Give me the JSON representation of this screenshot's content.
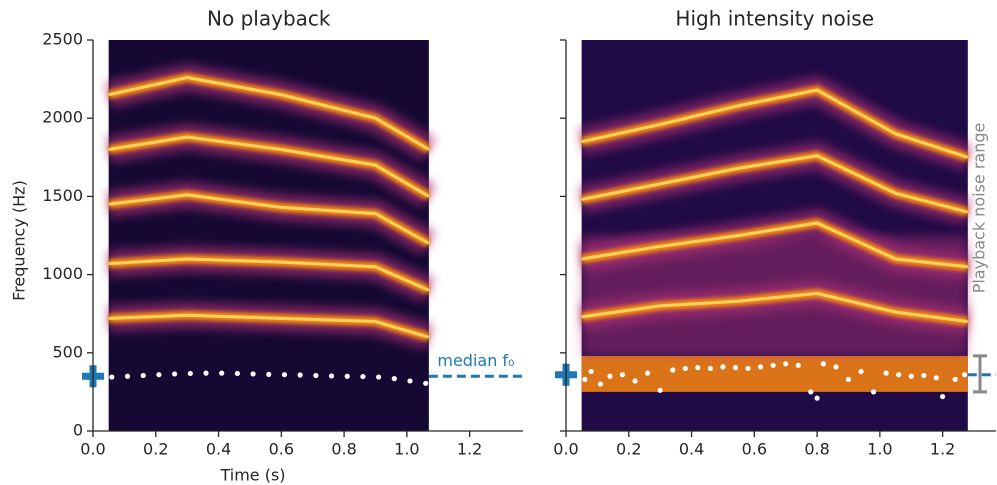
{
  "chart_data": [
    {
      "type": "spectrogram",
      "title": "No playback",
      "x_label": "Time (s)",
      "y_label": "Frequency (Hz)",
      "xlim": [
        0,
        1.37
      ],
      "ylim": [
        0,
        2500
      ],
      "xticks": [
        {
          "value": 0,
          "label": "0.0"
        },
        0.2,
        0.4,
        0.6,
        0.8,
        {
          "value": 1,
          "label": "1.0"
        },
        1.2
      ],
      "yticks": [
        0,
        500,
        1000,
        1500,
        2000,
        2500
      ],
      "ytick_labels": true,
      "extent": [
        0.05,
        1.07
      ],
      "harmonics": [
        {
          "x": [
            0.05,
            0.3,
            0.6,
            0.9,
            1.07
          ],
          "values": [
            720,
            740,
            720,
            700,
            600
          ]
        },
        {
          "x": [
            0.05,
            0.3,
            0.6,
            0.9,
            1.07
          ],
          "values": [
            1070,
            1100,
            1080,
            1050,
            900
          ]
        },
        {
          "x": [
            0.05,
            0.3,
            0.6,
            0.9,
            1.07
          ],
          "values": [
            1450,
            1510,
            1430,
            1390,
            1200
          ]
        },
        {
          "x": [
            0.05,
            0.3,
            0.6,
            0.9,
            1.07
          ],
          "values": [
            1800,
            1880,
            1800,
            1700,
            1500
          ]
        },
        {
          "x": [
            0.05,
            0.3,
            0.6,
            0.9,
            1.07
          ],
          "values": [
            2150,
            2260,
            2150,
            2000,
            1800
          ]
        }
      ],
      "f0": {
        "color": "#ffffff",
        "x": [
          0.06,
          0.11,
          0.16,
          0.21,
          0.26,
          0.31,
          0.36,
          0.41,
          0.46,
          0.51,
          0.56,
          0.61,
          0.66,
          0.71,
          0.76,
          0.81,
          0.86,
          0.91,
          0.96,
          1.01,
          1.06
        ],
        "values": [
          345,
          350,
          355,
          360,
          365,
          368,
          370,
          370,
          368,
          365,
          362,
          360,
          358,
          355,
          352,
          350,
          348,
          345,
          335,
          320,
          305
        ]
      },
      "median_f0": 350,
      "median_label": "median f₀",
      "median_color": "#1f77b4"
    },
    {
      "type": "spectrogram",
      "title": "High intensity noise",
      "xlim": [
        0,
        1.37
      ],
      "ylim": [
        0,
        2500
      ],
      "xticks": [
        {
          "value": 0,
          "label": "0.0"
        },
        0.2,
        0.4,
        0.6,
        0.8,
        {
          "value": 1,
          "label": "1.0"
        },
        1.2
      ],
      "yticks": [
        0,
        500,
        1000,
        1500,
        2000,
        2500
      ],
      "ytick_labels": false,
      "extent": [
        0.05,
        1.28
      ],
      "harmonics": [
        {
          "x": [
            0.05,
            0.3,
            0.55,
            0.8,
            1.05,
            1.28
          ],
          "values": [
            730,
            800,
            830,
            880,
            760,
            700
          ]
        },
        {
          "x": [
            0.05,
            0.3,
            0.55,
            0.8,
            1.05,
            1.28
          ],
          "values": [
            1100,
            1180,
            1250,
            1330,
            1100,
            1050
          ]
        },
        {
          "x": [
            0.05,
            0.3,
            0.55,
            0.8,
            1.05,
            1.28
          ],
          "values": [
            1480,
            1580,
            1680,
            1760,
            1520,
            1400
          ]
        },
        {
          "x": [
            0.05,
            0.3,
            0.55,
            0.8,
            1.05,
            1.28
          ],
          "values": [
            1850,
            1960,
            2080,
            2180,
            1900,
            1750
          ]
        }
      ],
      "f0": {
        "color": "#ffffff",
        "x": [
          0.06,
          0.08,
          0.11,
          0.14,
          0.18,
          0.22,
          0.26,
          0.3,
          0.34,
          0.38,
          0.42,
          0.46,
          0.5,
          0.54,
          0.58,
          0.62,
          0.66,
          0.7,
          0.74,
          0.78,
          0.8,
          0.82,
          0.86,
          0.9,
          0.94,
          0.98,
          1.02,
          1.06,
          1.1,
          1.14,
          1.18,
          1.2,
          1.24,
          1.27
        ],
        "values": [
          330,
          380,
          300,
          350,
          360,
          320,
          370,
          260,
          390,
          400,
          405,
          400,
          410,
          405,
          400,
          410,
          420,
          430,
          420,
          250,
          210,
          430,
          410,
          330,
          380,
          250,
          370,
          360,
          350,
          355,
          340,
          220,
          330,
          360
        ]
      },
      "median_f0": 360,
      "median_color": "#1f77b4",
      "noise_range": [
        250,
        480
      ],
      "noise_label": "Playback noise range",
      "noise_color": "#888888"
    }
  ]
}
